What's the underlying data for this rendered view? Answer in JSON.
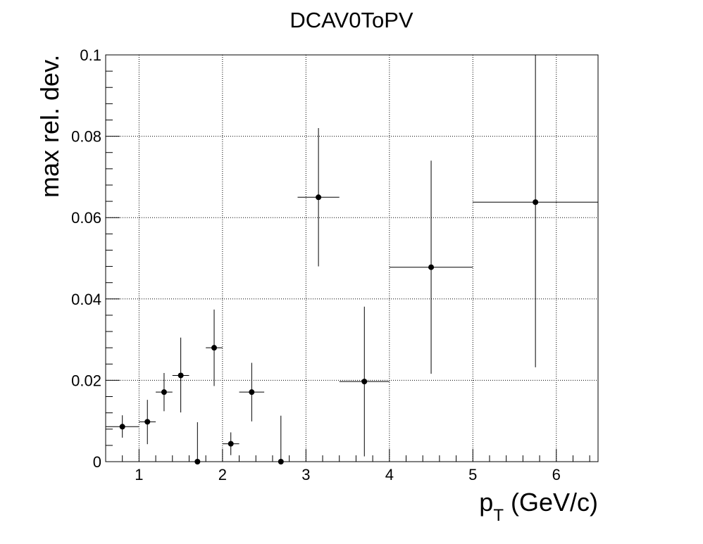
{
  "chart_data": {
    "type": "scatter",
    "title": "DCAV0ToPV",
    "xlabel": {
      "main": "p",
      "sub": "T",
      "rest": " (GeV/c)"
    },
    "ylabel": "max rel. dev.",
    "xlim": [
      0.6,
      6.5
    ],
    "ylim": [
      0,
      0.1
    ],
    "x_ticks": [
      1,
      2,
      3,
      4,
      5,
      6
    ],
    "x_tick_labels": [
      "1",
      "2",
      "3",
      "4",
      "5",
      "6"
    ],
    "y_ticks": [
      0,
      0.02,
      0.04,
      0.06,
      0.08,
      0.1
    ],
    "y_tick_labels": [
      "0",
      "0.02",
      "0.04",
      "0.06",
      "0.08",
      "0.1"
    ],
    "grid": true,
    "points": [
      {
        "x": 0.8,
        "xlo": 0.6,
        "xhi": 1.0,
        "y": 0.0086,
        "ylo": 0.0059,
        "yhi": 0.0114
      },
      {
        "x": 1.1,
        "xlo": 1.0,
        "xhi": 1.2,
        "y": 0.0098,
        "ylo": 0.0043,
        "yhi": 0.0152
      },
      {
        "x": 1.3,
        "xlo": 1.2,
        "xhi": 1.4,
        "y": 0.0171,
        "ylo": 0.0124,
        "yhi": 0.0218
      },
      {
        "x": 1.5,
        "xlo": 1.4,
        "xhi": 1.6,
        "y": 0.0212,
        "ylo": 0.0121,
        "yhi": 0.0305
      },
      {
        "x": 1.7,
        "xlo": 1.6,
        "xhi": 1.8,
        "y": 0.0,
        "ylo": 0.0,
        "yhi": 0.0097
      },
      {
        "x": 1.9,
        "xlo": 1.8,
        "xhi": 2.0,
        "y": 0.028,
        "ylo": 0.0186,
        "yhi": 0.0374
      },
      {
        "x": 2.1,
        "xlo": 2.0,
        "xhi": 2.2,
        "y": 0.0044,
        "ylo": 0.0016,
        "yhi": 0.0072
      },
      {
        "x": 2.35,
        "xlo": 2.2,
        "xhi": 2.5,
        "y": 0.0171,
        "ylo": 0.0099,
        "yhi": 0.0243
      },
      {
        "x": 2.7,
        "xlo": 2.5,
        "xhi": 2.9,
        "y": 0.0,
        "ylo": 0.0,
        "yhi": 0.0113
      },
      {
        "x": 3.15,
        "xlo": 2.9,
        "xhi": 3.4,
        "y": 0.065,
        "ylo": 0.048,
        "yhi": 0.082
      },
      {
        "x": 3.7,
        "xlo": 3.4,
        "xhi": 4.0,
        "y": 0.0197,
        "ylo": 0.0013,
        "yhi": 0.0381
      },
      {
        "x": 4.5,
        "xlo": 4.0,
        "xhi": 5.0,
        "y": 0.0478,
        "ylo": 0.0216,
        "yhi": 0.074
      },
      {
        "x": 5.75,
        "xlo": 5.0,
        "xhi": 6.5,
        "y": 0.0638,
        "ylo": 0.0232,
        "yhi": 0.1
      }
    ]
  }
}
